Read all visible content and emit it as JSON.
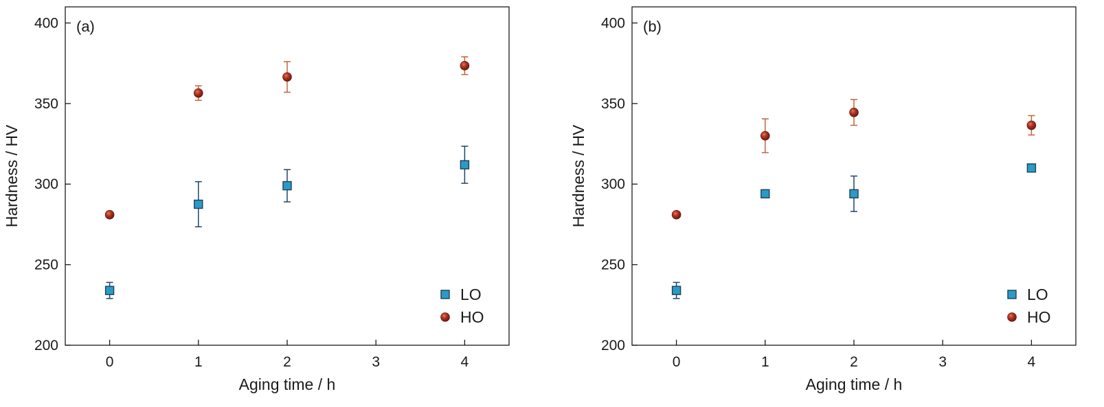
{
  "chart_data": [
    {
      "type": "scatter",
      "panel_label": "(a)",
      "xlabel": "Aging time / h",
      "ylabel": "Hardness / HV",
      "xlim": [
        -0.5,
        4.5
      ],
      "ylim": [
        200,
        410
      ],
      "xticks": [
        0,
        1,
        2,
        3,
        4
      ],
      "yticks": [
        200,
        250,
        300,
        350,
        400
      ],
      "grid": false,
      "legend_position": "bottom-right",
      "series": [
        {
          "name": "LO",
          "marker": "square",
          "color": "#2a9bc6",
          "error_color": "#1f4566",
          "points": [
            {
              "x": 0,
              "y": 234,
              "err": 5
            },
            {
              "x": 1,
              "y": 287.5,
              "err": 14
            },
            {
              "x": 2,
              "y": 299,
              "err": 10
            },
            {
              "x": 4,
              "y": 312,
              "err": 11.5
            }
          ]
        },
        {
          "name": "HO",
          "marker": "circle",
          "color": "#b2321f",
          "error_color": "#c0643a",
          "points": [
            {
              "x": 0,
              "y": 281,
              "err": 0
            },
            {
              "x": 1,
              "y": 356.5,
              "err": 4.5
            },
            {
              "x": 2,
              "y": 366.5,
              "err": 9.5
            },
            {
              "x": 4,
              "y": 373.5,
              "err": 5.5
            }
          ]
        }
      ]
    },
    {
      "type": "scatter",
      "panel_label": "(b)",
      "xlabel": "Aging time / h",
      "ylabel": "Hardness / HV",
      "xlim": [
        -0.5,
        4.5
      ],
      "ylim": [
        200,
        410
      ],
      "xticks": [
        0,
        1,
        2,
        3,
        4
      ],
      "yticks": [
        200,
        250,
        300,
        350,
        400
      ],
      "grid": false,
      "legend_position": "bottom-right",
      "series": [
        {
          "name": "LO",
          "marker": "square",
          "color": "#2a9bc6",
          "error_color": "#1f4566",
          "points": [
            {
              "x": 0,
              "y": 234,
              "err": 5
            },
            {
              "x": 1,
              "y": 294,
              "err": 0
            },
            {
              "x": 2,
              "y": 294,
              "err": 11
            },
            {
              "x": 4,
              "y": 310,
              "err": 1.5
            }
          ]
        },
        {
          "name": "HO",
          "marker": "circle",
          "color": "#b2321f",
          "error_color": "#c0643a",
          "points": [
            {
              "x": 0,
              "y": 281,
              "err": 0
            },
            {
              "x": 1,
              "y": 330,
              "err": 10.5
            },
            {
              "x": 2,
              "y": 344.5,
              "err": 8
            },
            {
              "x": 4,
              "y": 336.5,
              "err": 6
            }
          ]
        }
      ]
    }
  ]
}
